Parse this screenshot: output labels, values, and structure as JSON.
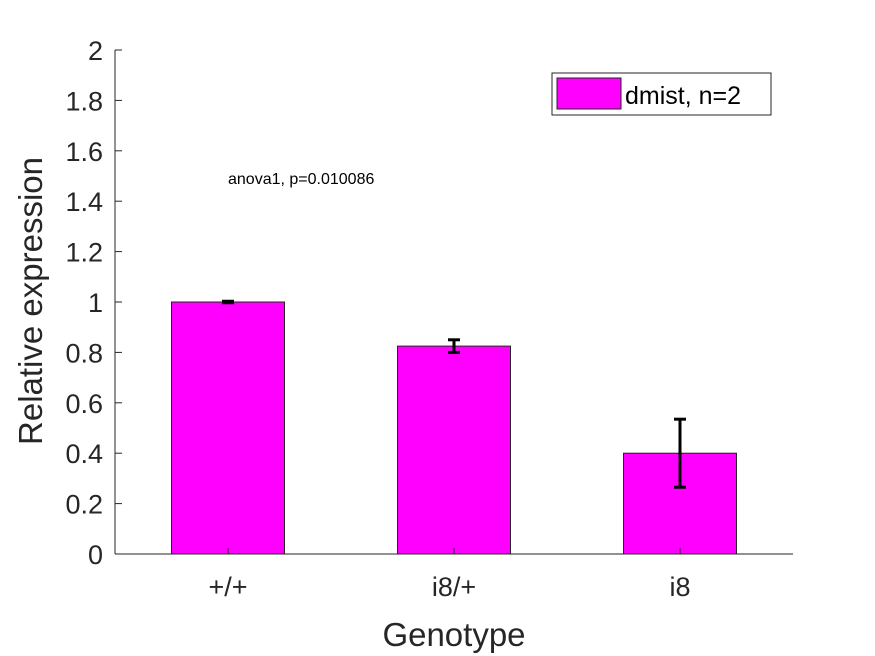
{
  "chart_data": {
    "type": "bar",
    "categories": [
      "+/+",
      "i8/+",
      "i8"
    ],
    "series": [
      {
        "name": "dmist, n=2",
        "color": "#FF00FF",
        "values": [
          1.0,
          0.825,
          0.4
        ],
        "errors": [
          0.003,
          0.025,
          0.135
        ]
      }
    ],
    "xlabel": "Genotype",
    "ylabel": "Relative expression",
    "ylim": [
      0,
      2
    ],
    "yticks": [
      "0",
      "0.2",
      "0.4",
      "0.6",
      "0.8",
      "1",
      "1.2",
      "1.4",
      "1.6",
      "1.8",
      "2"
    ],
    "annotation": "anova1, p=0.010086",
    "legend_position": "top-right",
    "grid": false
  }
}
